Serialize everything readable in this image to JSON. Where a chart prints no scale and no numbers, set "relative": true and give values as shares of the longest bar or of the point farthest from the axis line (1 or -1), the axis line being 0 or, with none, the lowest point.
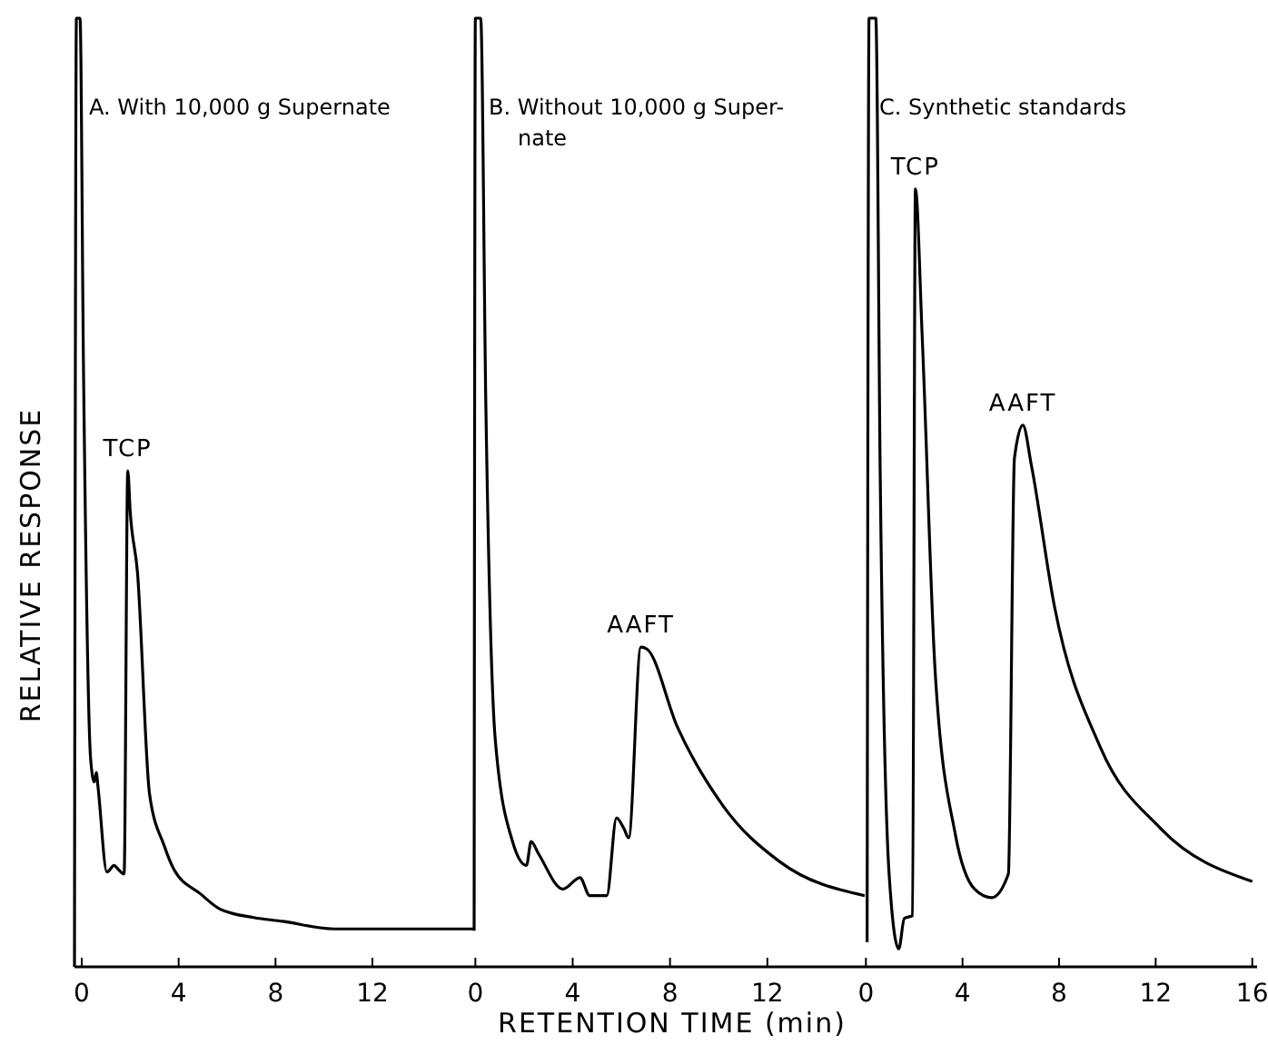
{
  "chart_data": [
    {
      "type": "line",
      "title": "A. With 10,000 g Supernate",
      "ylabel": "RELATIVE RESPONSE",
      "relative": true,
      "xlim": [
        -0.3,
        16.2
      ],
      "xticks": [
        0,
        4,
        8,
        12
      ],
      "x": [
        -0.3,
        -0.22,
        -0.07,
        0.07,
        0.37,
        0.52,
        0.6,
        0.67,
        1.04,
        1.34,
        1.5,
        1.75,
        1.9,
        2.0,
        2.3,
        2.8,
        3.4,
        3.8,
        4.9,
        5.7,
        7.1,
        8.3,
        10.4,
        16.2
      ],
      "series": [
        {
          "color": "#000000",
          "values": [
            0,
            1,
            1,
            0.636,
            0.218,
            0.195,
            0.205,
            0.19,
            0.1,
            0.107,
            0.103,
            0.098,
            0.523,
            0.48,
            0.416,
            0.182,
            0.128,
            0.103,
            0.077,
            0.061,
            0.052,
            0.048,
            0.04,
            0.04
          ]
        }
      ],
      "annotations": [
        {
          "text": "TCP",
          "x": 1.9,
          "y": 0.523
        }
      ]
    },
    {
      "type": "line",
      "title": "B. Without 10,000 g Super-\nnate",
      "xlabel": "RETENTION TIME (min)",
      "relative": true,
      "xlim": [
        -0.05,
        16.0
      ],
      "xticks": [
        0,
        4,
        8,
        12
      ],
      "x": [
        -0.05,
        0,
        0.22,
        0.43,
        0.82,
        1.53,
        2.1,
        2.29,
        2.6,
        3.6,
        4.3,
        4.7,
        5.4,
        5.8,
        6.1,
        6.3,
        6.8,
        7.05,
        8.3,
        10.2,
        12.5,
        16.0
      ],
      "series": [
        {
          "color": "#000000",
          "values": [
            0.038,
            1,
            1,
            0.594,
            0.239,
            0.132,
            0.107,
            0.132,
            0.119,
            0.082,
            0.094,
            0.075,
            0.075,
            0.157,
            0.146,
            0.136,
            0.337,
            0.335,
            0.253,
            0.169,
            0.111,
            0.075
          ]
        }
      ],
      "annotations": [
        {
          "text": "AAFT",
          "x": 6.8,
          "y": 0.337
        }
      ]
    },
    {
      "type": "line",
      "title": "C. Synthetic standards",
      "relative": true,
      "xlim": [
        -0.05,
        16.2
      ],
      "xticks": [
        0,
        4,
        8,
        12,
        16
      ],
      "x": [
        0.05,
        0.13,
        0.41,
        0.59,
        0.96,
        1.36,
        1.59,
        1.93,
        2.05,
        2.33,
        2.87,
        3.7,
        4.5,
        5.2,
        5.9,
        6.15,
        6.5,
        6.85,
        7.8,
        9.7,
        12.2,
        16.0
      ],
      "series": [
        {
          "color": "#000000",
          "values": [
            0.026,
            1,
            1,
            0.523,
            0.098,
            0.019,
            0.051,
            0.054,
            0.82,
            0.665,
            0.31,
            0.14,
            0.082,
            0.073,
            0.098,
            0.536,
            0.571,
            0.529,
            0.381,
            0.232,
            0.146,
            0.09
          ]
        }
      ],
      "annotations": [
        {
          "text": "TCP",
          "x": 2.05,
          "y": 0.82
        },
        {
          "text": "AAFT",
          "x": 6.5,
          "y": 0.571
        }
      ]
    }
  ]
}
